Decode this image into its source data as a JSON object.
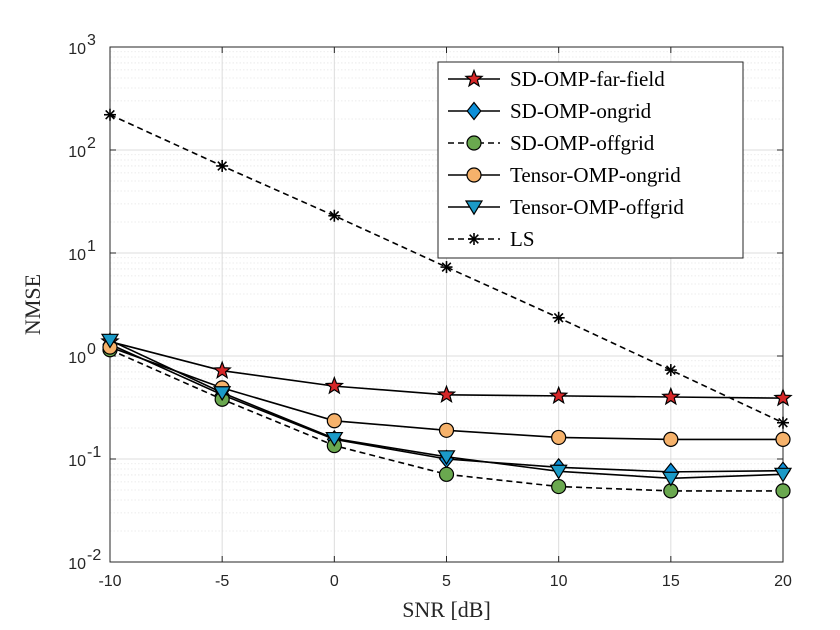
{
  "chart_data": {
    "type": "line",
    "xlabel": "SNR [dB]",
    "ylabel": "NMSE",
    "xlim": [
      -10,
      20
    ],
    "ylim": [
      0.01,
      1000
    ],
    "yscale": "log",
    "x_ticks": [
      -10,
      -5,
      0,
      5,
      10,
      15,
      20
    ],
    "x_tick_labels": [
      "-10",
      "-5",
      "0",
      "5",
      "10",
      "15",
      "20"
    ],
    "y_ticks": [
      {
        "value": 0.01,
        "base": "10",
        "exp": "-2"
      },
      {
        "value": 0.1,
        "base": "10",
        "exp": "-1"
      },
      {
        "value": 1,
        "base": "10",
        "exp": "0"
      },
      {
        "value": 10,
        "base": "10",
        "exp": "1"
      },
      {
        "value": 100,
        "base": "10",
        "exp": "2"
      },
      {
        "value": 1000,
        "base": "10",
        "exp": "3"
      }
    ],
    "grid": true,
    "minor_grid": true,
    "legend_position": "top-right",
    "x": [
      -10,
      -5,
      0,
      5,
      10,
      15,
      20
    ],
    "series": [
      {
        "name": "SD-OMP-far-field",
        "values": [
          1.38,
          0.72,
          0.51,
          0.42,
          0.41,
          0.4,
          0.39
        ],
        "marker": "star",
        "line": "solid",
        "color": "#000000",
        "fill": "#d62728"
      },
      {
        "name": "SD-OMP-ongrid",
        "values": [
          1.3,
          0.42,
          0.155,
          0.1,
          0.083,
          0.075,
          0.077
        ],
        "marker": "diamond",
        "line": "solid",
        "color": "#000000",
        "fill": "#0d8fd8"
      },
      {
        "name": "SD-OMP-offgrid",
        "values": [
          1.15,
          0.38,
          0.135,
          0.071,
          0.054,
          0.049,
          0.049
        ],
        "marker": "circle",
        "line": "dashed",
        "color": "#000000",
        "fill": "#6aa84f"
      },
      {
        "name": "Tensor-OMP-ongrid",
        "values": [
          1.22,
          0.49,
          0.235,
          0.19,
          0.162,
          0.155,
          0.155
        ],
        "marker": "circle",
        "line": "solid",
        "color": "#000000",
        "fill": "#f6b26b"
      },
      {
        "name": "Tensor-OMP-offgrid",
        "values": [
          1.42,
          0.44,
          0.158,
          0.105,
          0.076,
          0.065,
          0.071
        ],
        "marker": "triangle-down",
        "line": "solid",
        "color": "#000000",
        "fill": "#1b9ac7"
      },
      {
        "name": "LS",
        "values": [
          220,
          70,
          23,
          7.3,
          2.35,
          0.73,
          0.225
        ],
        "marker": "asterisk",
        "line": "dashed",
        "color": "#000000",
        "fill": "none"
      }
    ]
  }
}
